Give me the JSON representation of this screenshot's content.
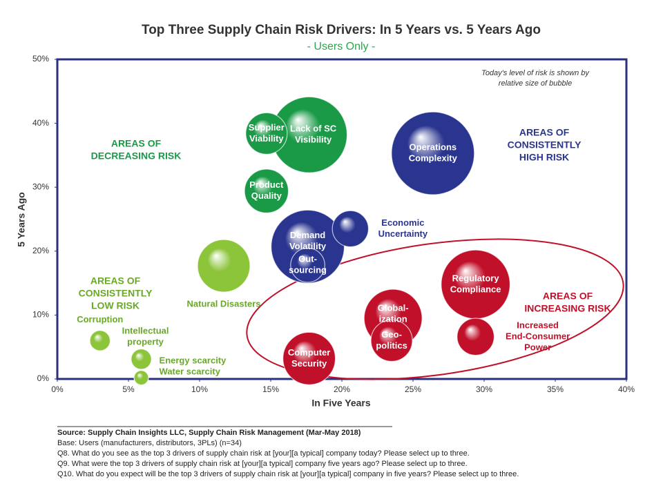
{
  "chart_data": {
    "type": "bubble",
    "title": "Top Three Supply Chain Risk Drivers: In 5 Years vs. 5 Years Ago",
    "subtitle": "- Users Only -",
    "x_label": "In Five Years",
    "y_label": "5 Years Ago",
    "labels": [
      [
        "Lack of SC",
        "Visibility"
      ],
      [
        "Supplier",
        "Viability"
      ],
      [
        "Product",
        "Quality"
      ],
      [
        "Operations",
        "Complexity"
      ],
      [
        "Demand",
        "Volatility"
      ],
      [
        "Out-",
        "sourcing"
      ],
      [
        "Economic",
        "Uncertainty"
      ],
      [
        "Natural Disasters"
      ],
      [
        "Regulatory",
        "Compliance"
      ],
      [
        "Global-",
        "ization"
      ],
      [
        "Geo-",
        "politics"
      ],
      [
        "Increased",
        "End-Consumer",
        "Power"
      ],
      [
        "Computer",
        "Security"
      ],
      [
        "Corruption"
      ],
      [
        "Intellectual",
        "property"
      ],
      [
        "Energy scarcity"
      ],
      [
        "Water scarcity"
      ]
    ],
    "x": [
      17.7,
      14.7,
      14.7,
      26.4,
      17.6,
      17.6,
      20.6,
      11.7,
      29.4,
      23.6,
      23.5,
      29.4,
      17.7,
      3.0,
      5.9,
      5.9,
      5.9
    ],
    "values": [
      38.2,
      38.4,
      29.4,
      35.3,
      20.7,
      17.8,
      23.5,
      17.7,
      14.8,
      9.5,
      6.0,
      6.6,
      3.2,
      6.0,
      3.1,
      0.2,
      0.2
    ],
    "sizes": [
      84,
      25,
      28,
      100,
      78,
      17,
      19,
      40,
      69,
      49,
      25,
      20,
      40,
      6,
      6,
      3,
      3
    ],
    "colors": [
      "#1a9a47",
      "#1a9a47",
      "#1a9a47",
      "#2a3590",
      "#2a3590",
      "#2a3590",
      "#2a3590",
      "#8cc43a",
      "#c0102a",
      "#c0102a",
      "#c0102a",
      "#c0102a",
      "#c0102a",
      "#8cc43a",
      "#8cc43a",
      "#8cc43a",
      "#8cc43a"
    ],
    "xlim": [
      0,
      40
    ],
    "ylim": [
      0,
      50
    ],
    "xticks": [
      {
        "value": 0,
        "label": "0%"
      },
      {
        "value": 5,
        "label": "5%"
      },
      {
        "value": 10,
        "label": "10%"
      },
      {
        "value": 15,
        "label": "15%"
      },
      {
        "value": 20,
        "label": "20%"
      },
      {
        "value": 25,
        "label": "25%"
      },
      {
        "value": 30,
        "label": "30%"
      },
      {
        "value": 35,
        "label": "35%"
      },
      {
        "value": 40,
        "label": "40%"
      }
    ],
    "yticks": [
      {
        "value": 0,
        "label": "0%"
      },
      {
        "value": 10,
        "label": "10%"
      },
      {
        "value": 20,
        "label": "20%"
      },
      {
        "value": 30,
        "label": "30%"
      },
      {
        "value": 40,
        "label": "40%"
      },
      {
        "value": 50,
        "label": "50%"
      }
    ],
    "annotations": [
      {
        "lines": [
          "Today's level of risk is shown by",
          "relative size of bubble"
        ]
      },
      {
        "lines": [
          "AREAS OF",
          "DECREASING RISK"
        ]
      },
      {
        "lines": [
          "AREAS OF",
          "CONSISTENTLY",
          "HIGH RISK"
        ]
      },
      {
        "lines": [
          "AREAS OF",
          "CONSISTENTLY",
          "LOW RISK"
        ]
      },
      {
        "lines": [
          "AREAS OF",
          "INCREASING RISK"
        ]
      }
    ],
    "notes": [
      "Source:  Supply Chain Insights LLC, Supply Chain Risk Management (Mar-May 2018)",
      "Base: Users (manufacturers, distributors, 3PLs) (n=34)",
      "Q8. What do you see as the top 3 drivers of supply chain risk at [your][a typical] company today?  Please select up to three.",
      "Q9. What were the top 3 drivers of supply chain risk at [your][a typical] company five years ago?  Please select up to three.",
      "Q10. What do you expect will be the top 3 drivers of supply chain risk at [your][a typical] company in five years?  Please select up to three."
    ]
  }
}
